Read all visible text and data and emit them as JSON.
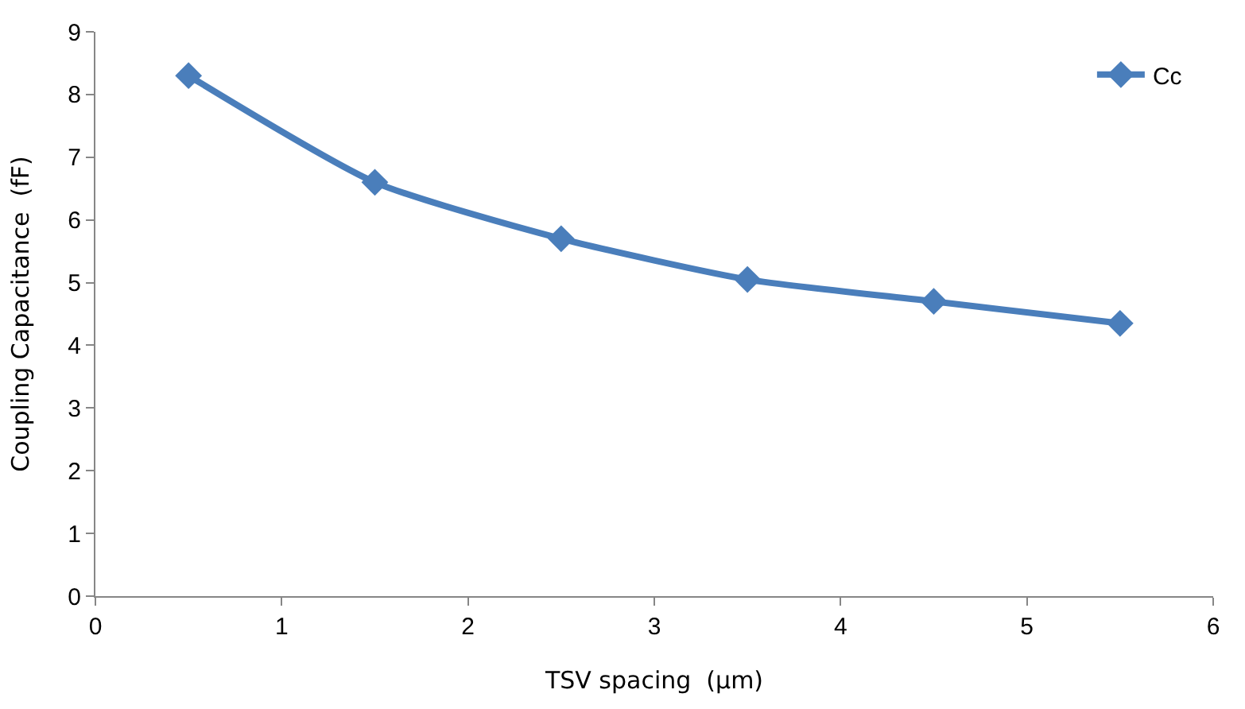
{
  "chart_data": {
    "type": "line",
    "xlabel": "TSV spacing  (µm)",
    "ylabel": "Coupling Capacitance  (fF)",
    "x": [
      0.5,
      1.5,
      2.5,
      3.5,
      4.5,
      5.5
    ],
    "series": [
      {
        "name": "Cc",
        "color": "#4a7ebb",
        "values": [
          8.3,
          6.6,
          5.7,
          5.05,
          4.7,
          4.35
        ]
      }
    ],
    "xlim": [
      0,
      6
    ],
    "xticks": [
      0,
      1,
      2,
      3,
      4,
      5,
      6
    ],
    "ylim": [
      0,
      9
    ],
    "yticks": [
      0,
      1,
      2,
      3,
      4,
      5,
      6,
      7,
      8,
      9
    ],
    "grid": false,
    "legend": "top right",
    "marker": "diamond",
    "line_style": "solid"
  }
}
